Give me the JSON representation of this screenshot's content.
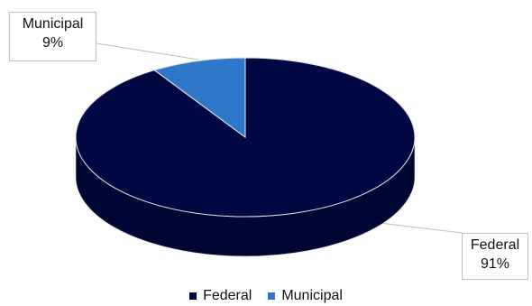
{
  "chart_data": {
    "type": "pie",
    "style": "3d",
    "title": "",
    "slices": [
      {
        "name": "Federal",
        "value": 91,
        "label": "91%",
        "color": "#000844"
      },
      {
        "name": "Municipal",
        "value": 9,
        "label": "9%",
        "color": "#2f78c9"
      }
    ],
    "legend": {
      "position": "bottom",
      "entries": [
        "Federal",
        "Municipal"
      ]
    }
  }
}
